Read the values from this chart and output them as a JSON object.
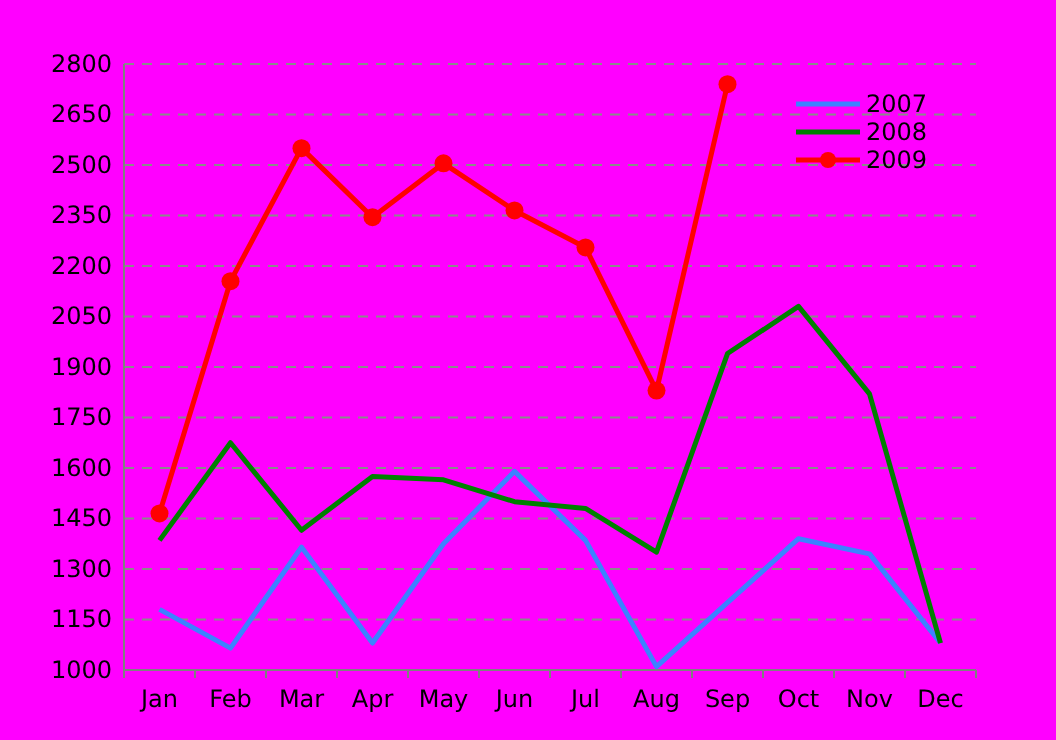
{
  "chart_data": {
    "type": "line",
    "categories": [
      "Jan",
      "Feb",
      "Mar",
      "Apr",
      "May",
      "Jun",
      "Jul",
      "Aug",
      "Sep",
      "Oct",
      "Nov",
      "Dec"
    ],
    "series": [
      {
        "name": "2007",
        "color": "#3c82ff",
        "marker": "none",
        "values": [
          1180,
          1065,
          1365,
          1080,
          1375,
          1590,
          1385,
          1010,
          1200,
          1390,
          1345,
          1080
        ]
      },
      {
        "name": "2008",
        "color": "#008000",
        "marker": "none",
        "values": [
          1385,
          1675,
          1415,
          1575,
          1565,
          1500,
          1480,
          1350,
          1940,
          2080,
          1820,
          1080
        ]
      },
      {
        "name": "2009",
        "color": "#ff0000",
        "marker": "circle",
        "values": [
          1465,
          2155,
          2550,
          2345,
          2505,
          2365,
          2255,
          1830,
          2740,
          null,
          null,
          null
        ]
      }
    ],
    "ylim": [
      1000,
      2800
    ],
    "yticks": [
      1000,
      1150,
      1300,
      1450,
      1600,
      1750,
      1900,
      2050,
      2200,
      2350,
      2500,
      2650,
      2800
    ],
    "grid": "y",
    "legend": "top right",
    "line_style": "solid"
  }
}
